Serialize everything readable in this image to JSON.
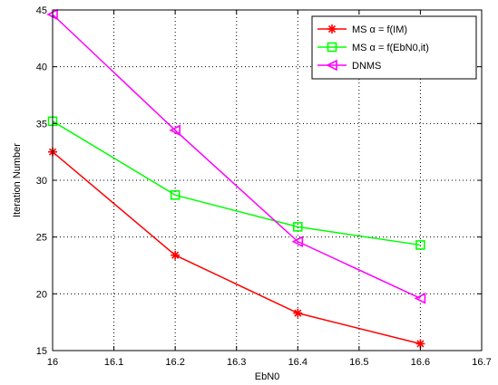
{
  "chart_data": {
    "type": "line",
    "xlabel": "EbN0",
    "ylabel": "Iteration Number",
    "xlim": [
      16,
      16.7
    ],
    "ylim": [
      15,
      45
    ],
    "xticks": [
      "16",
      "16.1",
      "16.2",
      "16.3",
      "16.4",
      "16.5",
      "16.6",
      "16.7"
    ],
    "yticks": [
      "15",
      "20",
      "25",
      "30",
      "35",
      "40",
      "45"
    ],
    "grid": true,
    "legend_position": "top-right",
    "x": [
      16,
      16.2,
      16.4,
      16.6
    ],
    "series": [
      {
        "name": "MS α = f(IM)",
        "values": [
          32.5,
          23.4,
          18.3,
          15.6
        ],
        "color": "#ff0000",
        "marker": "star"
      },
      {
        "name": "MS α = f(EbN0,it)",
        "values": [
          35.2,
          28.7,
          25.9,
          24.3
        ],
        "color": "#00ff00",
        "marker": "square"
      },
      {
        "name": "DNMS",
        "values": [
          44.6,
          34.4,
          24.6,
          19.6
        ],
        "color": "#ff00ff",
        "marker": "triangle-left"
      }
    ]
  }
}
